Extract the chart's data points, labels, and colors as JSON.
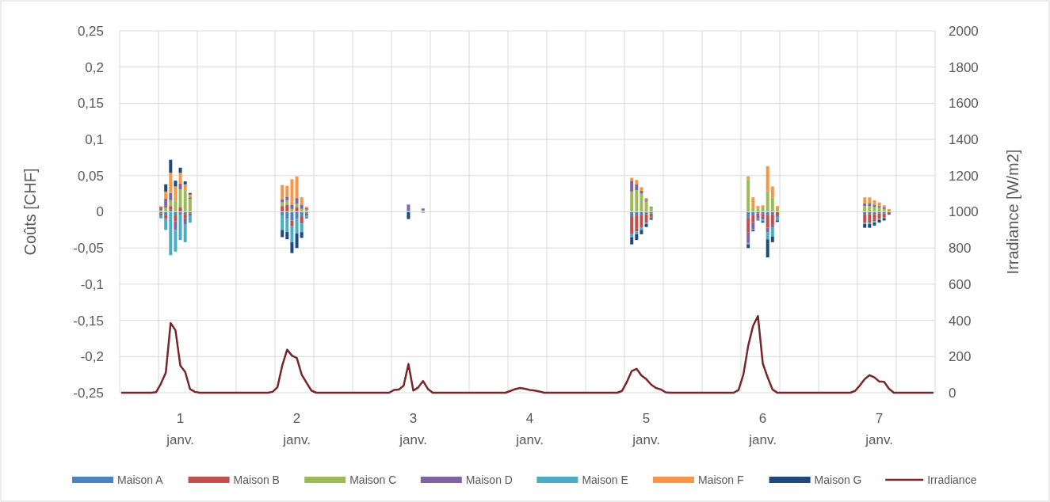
{
  "chart_data": {
    "type": "bar",
    "stacked": true,
    "ylabel": "Coûts [CHF]",
    "y2label": "Irradiance [W/m2]",
    "grid": true,
    "legend": "bottom",
    "categories": [
      null,
      null,
      null,
      null,
      null,
      null,
      null,
      null,
      null,
      null,
      null,
      null,
      "1 janv.",
      null,
      null,
      null,
      null,
      null,
      null,
      null,
      null,
      null,
      null,
      null,
      null,
      null,
      null,
      null,
      null,
      null,
      null,
      null,
      null,
      null,
      null,
      null,
      "2 janv.",
      null,
      null,
      null,
      null,
      null,
      null,
      null,
      null,
      null,
      null,
      null,
      null,
      null,
      null,
      null,
      null,
      null,
      null,
      null,
      null,
      null,
      null,
      null,
      "3 janv.",
      null,
      null,
      null,
      null,
      null,
      null,
      null,
      null,
      null,
      null,
      null,
      null,
      null,
      null,
      null,
      null,
      null,
      null,
      null,
      null,
      null,
      null,
      null,
      "4 janv.",
      null,
      null,
      null,
      null,
      null,
      null,
      null,
      null,
      null,
      null,
      null,
      null,
      null,
      null,
      null,
      null,
      null,
      null,
      null,
      null,
      null,
      null,
      null,
      "5 janv.",
      null,
      null,
      null,
      null,
      null,
      null,
      null,
      null,
      null,
      null,
      null,
      null,
      null,
      null,
      null,
      null,
      null,
      null,
      null,
      null,
      null,
      null,
      null,
      "6 janv.",
      null,
      null,
      null,
      null,
      null,
      null,
      null,
      null,
      null,
      null,
      null,
      null,
      null,
      null,
      null,
      null,
      null,
      null,
      null,
      null,
      null,
      null,
      null,
      "7 janv.",
      null,
      null,
      null,
      null,
      null,
      null,
      null,
      null,
      null,
      null,
      null
    ],
    "ylim": [
      -0.25,
      0.25
    ],
    "yticks": [
      {
        "value": 0.25,
        "label": "0,25"
      },
      {
        "value": 0.2,
        "label": "0,2"
      },
      {
        "value": 0.15,
        "label": "0,15"
      },
      {
        "value": 0.1,
        "label": "0,1"
      },
      {
        "value": 0.05,
        "label": "0,05"
      },
      {
        "value": 0,
        "label": "0"
      },
      {
        "value": -0.05,
        "label": "-0,05"
      },
      {
        "value": -0.1,
        "label": "-0,1"
      },
      {
        "value": -0.15,
        "label": "-0,15"
      },
      {
        "value": -0.2,
        "label": "-0,2"
      },
      {
        "value": -0.25,
        "label": "-0,25"
      }
    ],
    "y2lim": [
      0,
      2000
    ],
    "y2ticks": [
      0,
      200,
      400,
      600,
      800,
      1000,
      1200,
      1400,
      1600,
      1800,
      2000
    ],
    "series": [
      {
        "name": "Maison A",
        "color": "#4f81bd",
        "values": [
          null,
          null,
          null,
          null,
          null,
          null,
          null,
          null,
          -0.002,
          -0.004,
          0.003,
          -0.005,
          -0.004,
          -0.003,
          -0.002,
          null,
          null,
          null,
          null,
          null,
          null,
          null,
          null,
          null,
          null,
          null,
          null,
          null,
          null,
          null,
          null,
          null,
          null,
          -0.005,
          -0.01,
          -0.012,
          -0.01,
          -0.006,
          -0.002,
          null,
          null,
          null,
          null,
          null,
          null,
          null,
          null,
          null,
          null,
          null,
          null,
          null,
          null,
          null,
          null,
          null,
          null,
          null,
          null,
          0.002,
          null,
          null,
          0.001,
          null,
          null,
          null,
          null,
          null,
          null,
          null,
          null,
          null,
          null,
          null,
          null,
          null,
          null,
          null,
          null,
          null,
          null,
          null,
          null,
          null,
          null,
          null,
          null,
          null,
          null,
          null,
          null,
          null,
          null,
          null,
          null,
          null,
          null,
          null,
          null,
          null,
          null,
          null,
          null,
          null,
          null,
          -0.006,
          -0.005,
          -0.004,
          -0.003,
          -0.002,
          null,
          null,
          null,
          null,
          null,
          null,
          null,
          null,
          null,
          null,
          null,
          null,
          null,
          null,
          null,
          null,
          null,
          null,
          null,
          -0.008,
          -0.004,
          -0.002,
          -0.003,
          -0.004,
          -0.003,
          null,
          null,
          null,
          null,
          null,
          null,
          null,
          null,
          null,
          null,
          null,
          null,
          null,
          null,
          null,
          null,
          null,
          null,
          -0.003,
          -0.003,
          -0.003,
          -0.002,
          -0.002,
          null,
          null,
          null,
          null,
          null,
          null,
          null,
          null,
          null,
          null
        ]
      },
      {
        "name": "Maison B",
        "color": "#c0504d",
        "values": [
          null,
          null,
          null,
          null,
          null,
          null,
          null,
          null,
          -0.003,
          -0.006,
          0.005,
          -0.008,
          0.006,
          -0.006,
          -0.003,
          null,
          null,
          null,
          null,
          null,
          null,
          null,
          null,
          null,
          null,
          null,
          null,
          null,
          null,
          null,
          null,
          null,
          null,
          0.008,
          0.01,
          -0.008,
          0.006,
          -0.01,
          -0.003,
          null,
          null,
          null,
          null,
          null,
          null,
          null,
          null,
          null,
          null,
          null,
          null,
          null,
          null,
          null,
          null,
          null,
          null,
          null,
          null,
          null,
          null,
          null,
          null,
          null,
          null,
          null,
          null,
          null,
          null,
          null,
          null,
          null,
          null,
          null,
          null,
          null,
          null,
          null,
          null,
          null,
          null,
          null,
          null,
          null,
          null,
          null,
          null,
          null,
          null,
          null,
          null,
          null,
          null,
          null,
          null,
          null,
          null,
          null,
          null,
          null,
          null,
          null,
          null,
          null,
          null,
          -0.025,
          -0.022,
          -0.018,
          -0.012,
          -0.006,
          null,
          null,
          null,
          null,
          null,
          null,
          null,
          null,
          null,
          null,
          null,
          null,
          null,
          null,
          null,
          null,
          null,
          null,
          null,
          -0.02,
          -0.01,
          -0.003,
          -0.004,
          -0.018,
          -0.015,
          -0.005,
          null,
          null,
          null,
          null,
          null,
          null,
          null,
          null,
          null,
          null,
          null,
          null,
          null,
          null,
          null,
          null,
          null,
          -0.012,
          -0.012,
          -0.01,
          -0.008,
          -0.006,
          -0.003,
          null,
          null,
          null,
          null,
          null,
          null,
          null,
          null,
          null
        ]
      },
      {
        "name": "Maison C",
        "color": "#9bbb59",
        "values": [
          null,
          null,
          null,
          null,
          null,
          null,
          null,
          null,
          0.002,
          0.006,
          0.008,
          0.015,
          0.025,
          0.03,
          0.018,
          null,
          null,
          null,
          null,
          null,
          null,
          null,
          null,
          null,
          null,
          null,
          null,
          null,
          null,
          null,
          null,
          null,
          null,
          0.005,
          0.006,
          0.004,
          0.005,
          0.004,
          0.003,
          null,
          null,
          null,
          null,
          null,
          null,
          null,
          null,
          null,
          null,
          null,
          null,
          null,
          null,
          null,
          null,
          null,
          null,
          null,
          null,
          null,
          null,
          null,
          0.001,
          null,
          null,
          null,
          null,
          null,
          null,
          null,
          null,
          null,
          null,
          null,
          null,
          null,
          null,
          null,
          null,
          null,
          null,
          null,
          null,
          null,
          null,
          null,
          null,
          null,
          null,
          null,
          null,
          null,
          null,
          null,
          null,
          null,
          null,
          null,
          null,
          null,
          null,
          null,
          null,
          null,
          null,
          0.028,
          0.03,
          0.025,
          0.015,
          0.006,
          null,
          null,
          null,
          null,
          null,
          null,
          null,
          null,
          null,
          null,
          null,
          null,
          null,
          null,
          null,
          null,
          null,
          null,
          null,
          0.045,
          0.005,
          0.004,
          0.006,
          0.028,
          0.02,
          0.005,
          null,
          null,
          null,
          null,
          null,
          null,
          null,
          null,
          null,
          null,
          null,
          null,
          null,
          null,
          null,
          null,
          null,
          0.008,
          0.008,
          0.007,
          0.006,
          0.004,
          0.002,
          null,
          null,
          null,
          null,
          null,
          null,
          null,
          null,
          null
        ]
      },
      {
        "name": "Maison D",
        "color": "#8064a2",
        "values": [
          null,
          null,
          null,
          null,
          null,
          null,
          null,
          null,
          0.003,
          0.012,
          0.01,
          -0.012,
          0.008,
          -0.008,
          0.002,
          null,
          null,
          null,
          null,
          null,
          null,
          null,
          null,
          null,
          null,
          null,
          null,
          null,
          null,
          null,
          null,
          null,
          null,
          0.004,
          0.005,
          0.006,
          0.008,
          0.006,
          0.002,
          null,
          null,
          null,
          null,
          null,
          null,
          null,
          null,
          null,
          null,
          null,
          null,
          null,
          null,
          null,
          null,
          null,
          null,
          null,
          null,
          0.008,
          null,
          null,
          0.002,
          null,
          null,
          null,
          null,
          null,
          null,
          null,
          null,
          null,
          null,
          null,
          null,
          null,
          null,
          null,
          null,
          null,
          null,
          null,
          null,
          null,
          null,
          null,
          null,
          null,
          null,
          null,
          null,
          null,
          null,
          null,
          null,
          null,
          null,
          null,
          null,
          null,
          null,
          null,
          null,
          null,
          null,
          0.015,
          0.008,
          0.004,
          0.002,
          0.001,
          null,
          null,
          null,
          null,
          null,
          null,
          null,
          null,
          null,
          null,
          null,
          null,
          null,
          null,
          null,
          null,
          null,
          null,
          null,
          -0.015,
          -0.01,
          -0.005,
          -0.004,
          -0.006,
          -0.004,
          -0.002,
          null,
          null,
          null,
          null,
          null,
          null,
          null,
          null,
          null,
          null,
          null,
          null,
          null,
          null,
          null,
          null,
          null,
          0.004,
          0.004,
          0.003,
          0.002,
          0.002,
          0.001,
          null,
          null,
          null,
          null,
          null,
          null,
          null,
          null,
          null
        ]
      },
      {
        "name": "Maison E",
        "color": "#4bacc6",
        "values": [
          null,
          null,
          null,
          null,
          null,
          null,
          null,
          null,
          -0.004,
          -0.015,
          -0.06,
          -0.03,
          -0.035,
          -0.025,
          -0.01,
          null,
          null,
          null,
          null,
          null,
          null,
          null,
          null,
          null,
          null,
          null,
          null,
          null,
          null,
          null,
          null,
          null,
          null,
          -0.02,
          -0.018,
          -0.022,
          -0.02,
          -0.012,
          -0.003,
          null,
          null,
          null,
          null,
          null,
          null,
          null,
          null,
          null,
          null,
          null,
          null,
          null,
          null,
          null,
          null,
          null,
          null,
          null,
          null,
          null,
          null,
          null,
          0.001,
          null,
          null,
          null,
          null,
          null,
          null,
          null,
          null,
          null,
          null,
          null,
          null,
          null,
          null,
          null,
          null,
          null,
          null,
          null,
          null,
          null,
          null,
          null,
          null,
          null,
          null,
          null,
          null,
          null,
          null,
          null,
          null,
          null,
          null,
          null,
          null,
          null,
          null,
          null,
          null,
          null,
          null,
          -0.004,
          -0.004,
          -0.003,
          -0.002,
          -0.001,
          null,
          null,
          null,
          null,
          null,
          null,
          null,
          null,
          null,
          null,
          null,
          null,
          null,
          null,
          null,
          null,
          null,
          null,
          null,
          -0.002,
          -0.001,
          -0.001,
          -0.002,
          -0.01,
          -0.012,
          -0.005,
          null,
          null,
          null,
          null,
          null,
          null,
          null,
          null,
          null,
          null,
          null,
          null,
          null,
          null,
          null,
          null,
          null,
          -0.002,
          -0.002,
          -0.002,
          -0.001,
          -0.001,
          null,
          null,
          null,
          null,
          null,
          null,
          null,
          null,
          null,
          null
        ]
      },
      {
        "name": "Maison F",
        "color": "#f79646",
        "values": [
          null,
          null,
          null,
          null,
          null,
          null,
          null,
          null,
          0.001,
          0.01,
          0.028,
          0.02,
          0.015,
          0.008,
          0.004,
          null,
          null,
          null,
          null,
          null,
          null,
          null,
          null,
          null,
          null,
          null,
          null,
          null,
          null,
          null,
          null,
          null,
          null,
          0.02,
          0.015,
          0.035,
          0.03,
          0.01,
          0.002,
          null,
          null,
          null,
          null,
          null,
          null,
          null,
          null,
          null,
          null,
          null,
          null,
          null,
          null,
          null,
          null,
          null,
          null,
          null,
          null,
          null,
          null,
          null,
          null,
          null,
          null,
          null,
          null,
          null,
          null,
          null,
          null,
          null,
          null,
          null,
          null,
          null,
          null,
          null,
          null,
          null,
          null,
          null,
          null,
          null,
          null,
          null,
          null,
          null,
          null,
          null,
          null,
          null,
          null,
          null,
          null,
          null,
          null,
          null,
          null,
          null,
          null,
          null,
          null,
          null,
          null,
          0.004,
          0.006,
          0.005,
          0.002,
          null,
          null,
          null,
          null,
          null,
          null,
          null,
          null,
          null,
          null,
          null,
          null,
          null,
          null,
          null,
          null,
          null,
          null,
          null,
          null,
          0.004,
          0.015,
          0.004,
          0.003,
          0.035,
          0.015,
          0.003,
          null,
          null,
          null,
          null,
          null,
          null,
          null,
          null,
          null,
          null,
          null,
          null,
          null,
          null,
          null,
          null,
          null,
          0.008,
          0.008,
          0.006,
          0.005,
          0.003,
          0.001,
          null,
          null,
          null,
          null,
          null,
          null,
          null,
          null,
          null
        ]
      },
      {
        "name": "Maison G",
        "color": "#1f497d",
        "values": [
          null,
          null,
          null,
          null,
          null,
          null,
          null,
          null,
          0.001,
          0.01,
          0.018,
          0.008,
          0.007,
          0.004,
          0.002,
          null,
          null,
          null,
          null,
          null,
          null,
          null,
          null,
          null,
          null,
          null,
          null,
          null,
          null,
          null,
          null,
          null,
          null,
          -0.01,
          -0.01,
          -0.015,
          -0.02,
          -0.008,
          -0.001,
          null,
          null,
          null,
          null,
          null,
          null,
          null,
          null,
          null,
          null,
          null,
          null,
          null,
          null,
          null,
          null,
          null,
          null,
          null,
          null,
          -0.01,
          null,
          null,
          -0.001,
          null,
          null,
          null,
          null,
          null,
          null,
          null,
          null,
          null,
          null,
          null,
          null,
          null,
          null,
          null,
          null,
          null,
          null,
          null,
          null,
          null,
          null,
          null,
          null,
          null,
          null,
          null,
          null,
          null,
          null,
          null,
          null,
          null,
          null,
          null,
          null,
          null,
          null,
          null,
          null,
          null,
          null,
          -0.01,
          -0.008,
          -0.006,
          -0.004,
          -0.002,
          null,
          null,
          null,
          null,
          null,
          null,
          null,
          null,
          null,
          null,
          null,
          null,
          null,
          null,
          null,
          null,
          null,
          null,
          null,
          -0.005,
          -0.002,
          -0.001,
          -0.002,
          -0.025,
          -0.008,
          -0.002,
          null,
          null,
          null,
          null,
          null,
          null,
          null,
          null,
          null,
          null,
          null,
          null,
          null,
          null,
          null,
          null,
          null,
          -0.005,
          -0.005,
          -0.004,
          -0.004,
          -0.003,
          -0.001,
          null,
          null,
          null,
          null,
          null,
          null,
          null,
          null,
          null
        ]
      },
      {
        "name": "Irradiance",
        "type": "line",
        "axis": "y2",
        "color": "#77262a",
        "values": [
          0,
          0,
          0,
          0,
          0,
          0,
          0,
          3,
          50,
          110,
          385,
          345,
          150,
          115,
          20,
          5,
          0,
          0,
          0,
          0,
          0,
          0,
          0,
          0,
          0,
          0,
          0,
          0,
          0,
          0,
          0,
          5,
          30,
          150,
          238,
          205,
          192,
          100,
          55,
          12,
          0,
          0,
          0,
          0,
          0,
          0,
          0,
          0,
          0,
          0,
          0,
          0,
          0,
          0,
          0,
          0,
          15,
          18,
          38,
          159,
          12,
          29,
          65,
          21,
          0,
          0,
          0,
          0,
          0,
          0,
          0,
          0,
          0,
          0,
          0,
          0,
          0,
          0,
          0,
          0,
          10,
          20,
          26,
          22,
          15,
          12,
          7,
          0,
          0,
          0,
          0,
          0,
          0,
          0,
          0,
          0,
          0,
          0,
          0,
          0,
          0,
          0,
          0,
          10,
          60,
          120,
          132,
          95,
          75,
          45,
          26,
          18,
          2,
          0,
          0,
          0,
          0,
          0,
          0,
          0,
          0,
          0,
          0,
          0,
          0,
          0,
          0,
          15,
          100,
          260,
          370,
          424,
          162,
          85,
          18,
          0,
          0,
          0,
          0,
          0,
          0,
          0,
          0,
          0,
          0,
          0,
          0,
          0,
          0,
          0,
          0,
          10,
          40,
          75,
          97,
          85,
          62,
          60,
          22,
          0,
          0,
          0,
          0,
          0,
          0,
          0,
          0,
          0
        ]
      }
    ]
  }
}
